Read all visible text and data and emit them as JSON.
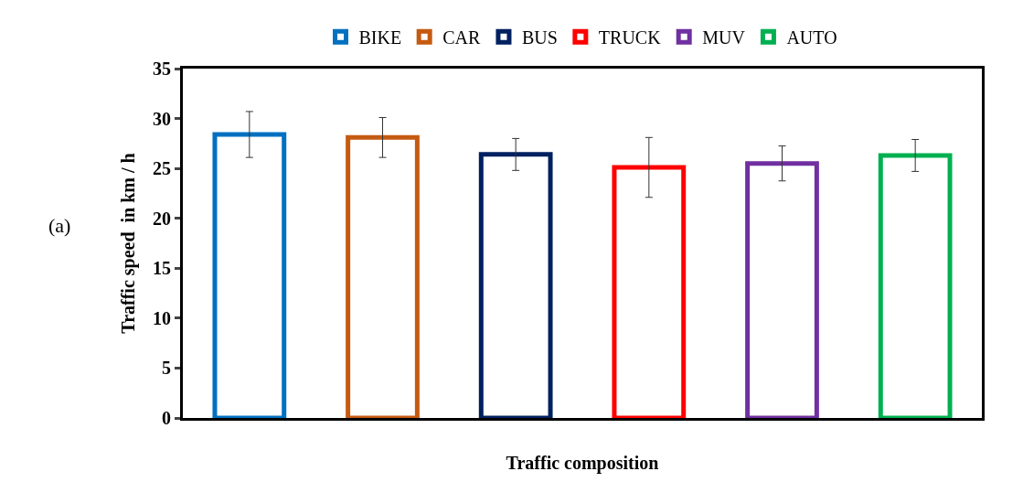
{
  "chart_data": {
    "type": "bar",
    "xlabel": "Traffic composition",
    "ylabel": "Traffic speed  in km / h",
    "categories": [
      null,
      null,
      null,
      null,
      null,
      null
    ],
    "series": [
      {
        "name": "BIKE",
        "color": "#0070c0",
        "values": [
          28.4,
          null,
          null,
          null,
          null,
          null
        ],
        "errors": [
          2.3,
          null,
          null,
          null,
          null,
          null
        ]
      },
      {
        "name": "CAR",
        "color": "#c55a11",
        "values": [
          null,
          28.1,
          null,
          null,
          null,
          null
        ],
        "errors": [
          null,
          2.0,
          null,
          null,
          null,
          null
        ]
      },
      {
        "name": "BUS",
        "color": "#002060",
        "values": [
          null,
          null,
          26.4,
          null,
          null,
          null
        ],
        "errors": [
          null,
          null,
          1.6,
          null,
          null,
          null
        ]
      },
      {
        "name": "TRUCK",
        "color": "#ff0000",
        "values": [
          null,
          null,
          null,
          25.1,
          null,
          null
        ],
        "errors": [
          null,
          null,
          null,
          3.0,
          null,
          null
        ]
      },
      {
        "name": "MUV",
        "color": "#7030a0",
        "values": [
          null,
          null,
          null,
          null,
          25.5,
          null
        ],
        "errors": [
          null,
          null,
          null,
          null,
          1.75,
          null
        ]
      },
      {
        "name": "AUTO",
        "color": "#00b050",
        "values": [
          null,
          null,
          null,
          null,
          null,
          26.3
        ],
        "errors": [
          null,
          null,
          null,
          null,
          null,
          1.6
        ]
      }
    ],
    "ylim": [
      0,
      35
    ],
    "yticks": [
      0,
      5,
      10,
      15,
      20,
      25,
      30,
      35
    ],
    "annotations": [
      "(a)"
    ],
    "legend": "top",
    "tick_labels": "y"
  }
}
